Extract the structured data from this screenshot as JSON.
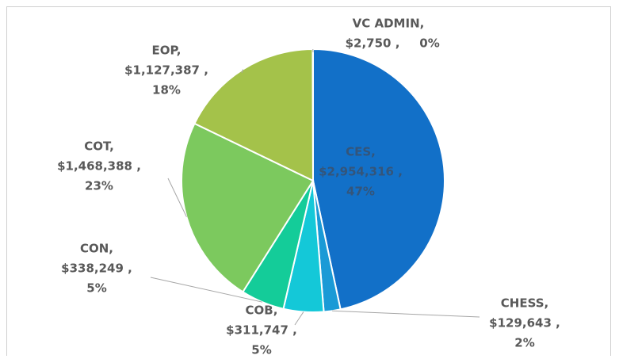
{
  "chart_data": {
    "type": "pie",
    "categories": [
      "CES,",
      "CHESS,",
      "COB,",
      "CON,",
      "COT,",
      "EOP,",
      "VC ADMIN,"
    ],
    "values": [
      2954316,
      129643,
      311747,
      338249,
      1468388,
      1127387,
      2750
    ],
    "value_labels": [
      "$2,954,316 ,",
      "$129,643 ,",
      "$311,747 ,",
      "$338,249 ,",
      "$1,468,388 ,",
      "$1,127,387 ,",
      "$2,750 ,"
    ],
    "percent_labels": [
      "47%",
      "2%",
      "5%",
      "5%",
      "23%",
      "18%",
      "0%"
    ],
    "colors": [
      "#1270c8",
      "#1a9ad6",
      "#14c8d8",
      "#14cc99",
      "#7cc95e",
      "#a4c24a",
      "#2a6fb8"
    ]
  }
}
